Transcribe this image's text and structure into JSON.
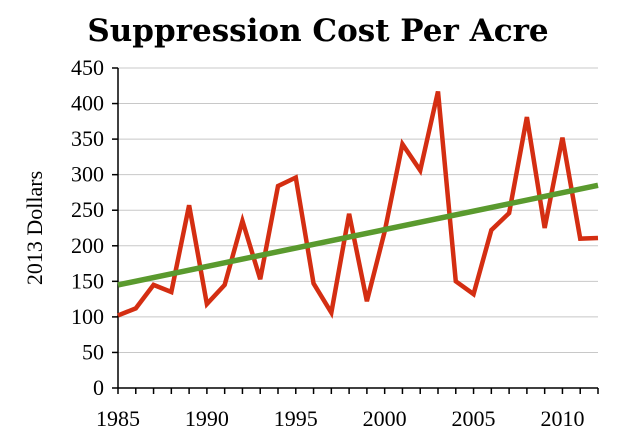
{
  "chart_data": {
    "type": "line",
    "title": "Suppression Cost Per Acre",
    "xlabel": "",
    "ylabel": "2013 Dollars",
    "xlim": [
      1985,
      2012
    ],
    "ylim": [
      0,
      450
    ],
    "x_ticks": [
      1985,
      1990,
      1995,
      2000,
      2005,
      2010
    ],
    "y_ticks": [
      0,
      50,
      100,
      150,
      200,
      250,
      300,
      350,
      400,
      450
    ],
    "grid": "horizontal",
    "legend": "none",
    "series": [
      {
        "color": "#d42e12",
        "x": [
          1985,
          1986,
          1987,
          1988,
          1989,
          1990,
          1991,
          1992,
          1993,
          1994,
          1995,
          1996,
          1997,
          1998,
          1999,
          2000,
          2001,
          2002,
          2003,
          2004,
          2005,
          2006,
          2007,
          2008,
          2009,
          2010,
          2011,
          2012
        ],
        "values": [
          102,
          112,
          145,
          135,
          257,
          118,
          145,
          235,
          153,
          284,
          296,
          147,
          106,
          245,
          122,
          220,
          343,
          306,
          417,
          150,
          132,
          222,
          246,
          381,
          225,
          352,
          210,
          211
        ]
      },
      {
        "color": "#5a9a2e",
        "x": [
          1985,
          2012
        ],
        "values": [
          145,
          285
        ]
      }
    ]
  }
}
